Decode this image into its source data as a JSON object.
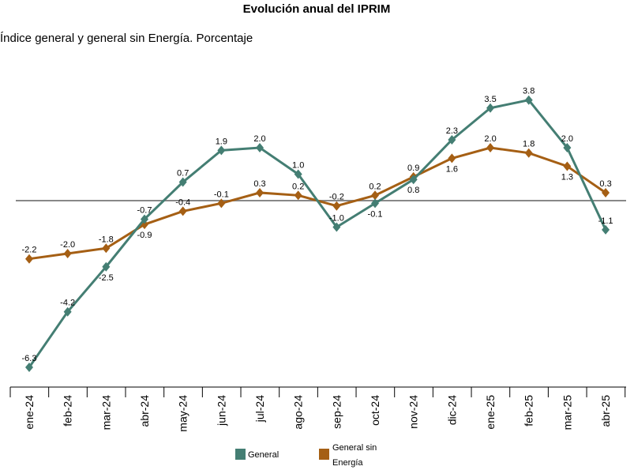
{
  "chart_data": {
    "type": "line",
    "title": "Evolución anual del IPRIM",
    "subtitle": "Índice general y general sin Energía. Porcentaje",
    "categories": [
      "ene-24",
      "feb-24",
      "mar-24",
      "abr-24",
      "may-24",
      "jun-24",
      "jul-24",
      "ago-24",
      "sep-24",
      "oct-24",
      "nov-24",
      "dic-24",
      "ene-25",
      "feb-25",
      "mar-25",
      "abr-25"
    ],
    "series": [
      {
        "name": "General",
        "color": "#447e73",
        "values": [
          -6.3,
          -4.2,
          -2.5,
          -0.7,
          0.7,
          1.9,
          2.0,
          1.0,
          -1.0,
          -0.1,
          0.8,
          2.3,
          3.5,
          3.8,
          2.0,
          -1.1
        ]
      },
      {
        "name": "General sin Energía",
        "color": "#a55f14",
        "values": [
          -2.2,
          -2.0,
          -1.8,
          -0.9,
          -0.4,
          -0.1,
          0.3,
          0.2,
          -0.2,
          0.2,
          0.9,
          1.6,
          2.0,
          1.8,
          1.3,
          0.3
        ]
      }
    ],
    "legend_line2": "Energía",
    "legend_line1": "General sin",
    "ylim": [
      -7,
      4.5
    ],
    "grid": false,
    "legend_position": "bottom",
    "xlabel": "",
    "ylabel": ""
  }
}
